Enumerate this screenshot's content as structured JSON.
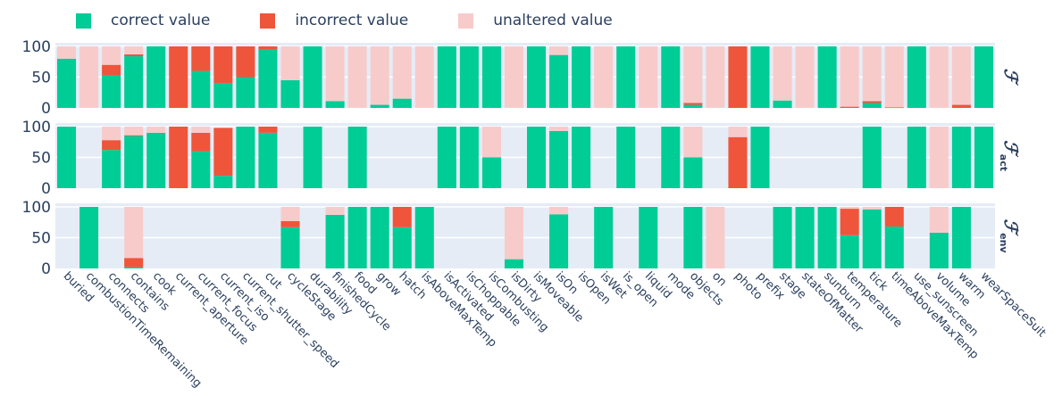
{
  "chart_data": {
    "type": "bar",
    "stacked": true,
    "legend": {
      "placement": "top-left",
      "entries": [
        {
          "key": "correct",
          "label": "correct value",
          "color": "#00cc96"
        },
        {
          "key": "incorrect",
          "label": "incorrect value",
          "color": "#ef553b"
        },
        {
          "key": "unaltered",
          "label": "unaltered value",
          "color": "#f8cbcb"
        }
      ]
    },
    "plot_bg": "#e5ecf6",
    "categories": [
      "buried",
      "combustionTimeRemaining",
      "connects",
      "contains",
      "cook",
      "current_aperture",
      "current_focus",
      "current_iso",
      "current_shutter_speed",
      "cut",
      "cycleStage",
      "durability",
      "finishedCycle",
      "food",
      "grow",
      "hatch",
      "isAboveMaxTemp",
      "isActivated",
      "isChoppable",
      "isCombusting",
      "isDirty",
      "isMoveable",
      "isOn",
      "isOpen",
      "isWet",
      "is_open",
      "liquid",
      "mode",
      "objects",
      "on",
      "photo",
      "prefix",
      "stage",
      "stateOfMatter",
      "sunburn",
      "temperature",
      "tick",
      "timeAboveMaxTemp",
      "use_sunscreen",
      "volume",
      "warm",
      "wearSpaceSuit"
    ],
    "y_ticks": [
      "0",
      "50",
      "100"
    ],
    "ylim": [
      0,
      100
    ],
    "grid": true,
    "panels": [
      {
        "name": "F",
        "label_main": "ℱ",
        "label_sub": "",
        "series": {
          "correct": [
            80,
            0,
            53,
            84,
            100,
            0,
            60,
            40,
            50,
            95,
            45,
            100,
            11,
            0,
            5,
            15,
            0,
            100,
            100,
            100,
            0,
            100,
            86,
            100,
            0,
            100,
            0,
            100,
            5,
            0,
            0,
            100,
            12,
            0,
            100,
            0,
            8,
            0,
            100,
            0,
            0,
            100
          ],
          "incorrect": [
            0,
            0,
            17,
            3,
            0,
            100,
            40,
            60,
            50,
            5,
            0,
            0,
            0,
            0,
            0,
            0,
            0,
            0,
            0,
            0,
            0,
            0,
            0,
            0,
            0,
            0,
            0,
            0,
            3,
            0,
            100,
            0,
            0,
            0,
            0,
            2,
            3,
            1,
            0,
            0,
            5,
            0
          ],
          "unaltered": [
            20,
            100,
            30,
            13,
            0,
            0,
            0,
            0,
            0,
            0,
            55,
            0,
            89,
            100,
            95,
            85,
            100,
            0,
            0,
            0,
            100,
            0,
            14,
            0,
            100,
            0,
            100,
            0,
            92,
            100,
            0,
            0,
            88,
            100,
            0,
            98,
            89,
            99,
            0,
            100,
            95,
            0
          ]
        }
      },
      {
        "name": "F_act",
        "label_main": "ℱ",
        "label_sub": "act",
        "series": {
          "correct": [
            100,
            0,
            62,
            85,
            90,
            0,
            60,
            20,
            100,
            90,
            0,
            100,
            0,
            100,
            0,
            0,
            0,
            100,
            100,
            50,
            0,
            100,
            93,
            100,
            0,
            100,
            0,
            100,
            50,
            0,
            0,
            100,
            0,
            0,
            0,
            0,
            100,
            0,
            100,
            0,
            100,
            100
          ],
          "incorrect": [
            0,
            0,
            16,
            1,
            0,
            100,
            30,
            78,
            0,
            10,
            0,
            0,
            0,
            0,
            0,
            0,
            0,
            0,
            0,
            0,
            0,
            0,
            0,
            0,
            0,
            0,
            0,
            0,
            0,
            0,
            83,
            0,
            0,
            0,
            0,
            0,
            0,
            0,
            0,
            0,
            0,
            0
          ],
          "unaltered": [
            0,
            0,
            22,
            14,
            10,
            0,
            10,
            0,
            0,
            0,
            0,
            0,
            0,
            0,
            0,
            0,
            0,
            0,
            0,
            50,
            0,
            0,
            7,
            0,
            0,
            0,
            0,
            0,
            50,
            0,
            17,
            0,
            0,
            0,
            0,
            0,
            0,
            0,
            0,
            100,
            0,
            0
          ]
        }
      },
      {
        "name": "F_env",
        "label_main": "ℱ",
        "label_sub": "env",
        "series": {
          "correct": [
            0,
            100,
            0,
            2,
            0,
            0,
            0,
            0,
            0,
            0,
            67,
            0,
            87,
            100,
            100,
            67,
            100,
            0,
            0,
            0,
            15,
            0,
            88,
            0,
            100,
            0,
            100,
            0,
            100,
            0,
            0,
            0,
            100,
            100,
            100,
            54,
            96,
            68,
            0,
            58,
            100,
            0
          ],
          "incorrect": [
            0,
            0,
            0,
            15,
            0,
            0,
            0,
            0,
            0,
            0,
            10,
            0,
            0,
            0,
            0,
            33,
            0,
            0,
            0,
            0,
            0,
            0,
            0,
            0,
            0,
            0,
            0,
            0,
            0,
            0,
            0,
            0,
            0,
            0,
            0,
            43,
            0,
            32,
            0,
            0,
            0,
            0
          ],
          "unaltered": [
            0,
            0,
            0,
            83,
            0,
            0,
            0,
            0,
            0,
            0,
            23,
            0,
            13,
            0,
            0,
            0,
            0,
            0,
            0,
            0,
            85,
            0,
            12,
            0,
            0,
            0,
            0,
            0,
            0,
            100,
            0,
            0,
            0,
            0,
            0,
            3,
            4,
            0,
            0,
            42,
            0,
            0
          ]
        }
      }
    ]
  }
}
